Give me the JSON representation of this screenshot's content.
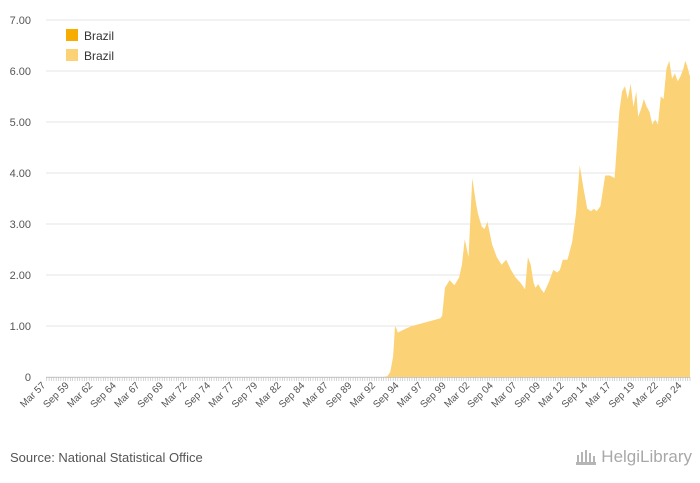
{
  "chart_data": {
    "type": "area",
    "title": "",
    "xlabel": "",
    "ylabel": "",
    "ylim": [
      0,
      7
    ],
    "y_ticks": [
      0,
      1,
      2,
      3,
      4,
      5,
      6,
      7
    ],
    "y_tick_labels": [
      "0",
      "1.00",
      "2.00",
      "3.00",
      "4.00",
      "5.00",
      "6.00",
      "7.00"
    ],
    "x_range": [
      1957.17,
      2025.5
    ],
    "x_tick_labels": [
      "Mar 57",
      "Sep 59",
      "Mar 62",
      "Sep 64",
      "Mar 67",
      "Sep 69",
      "Mar 72",
      "Sep 74",
      "Mar 77",
      "Sep 79",
      "Mar 82",
      "Sep 84",
      "Mar 87",
      "Sep 89",
      "Mar 92",
      "Sep 94",
      "Mar 97",
      "Sep 99",
      "Mar 02",
      "Sep 04",
      "Mar 07",
      "Sep 09",
      "Mar 12",
      "Sep 14",
      "Mar 17",
      "Sep 19",
      "Mar 22",
      "Sep 24"
    ],
    "x_tick_values": [
      1957.17,
      1959.67,
      1962.17,
      1964.67,
      1967.17,
      1969.67,
      1972.17,
      1974.67,
      1977.17,
      1979.67,
      1982.17,
      1984.67,
      1987.17,
      1989.67,
      1992.17,
      1994.67,
      1997.17,
      1999.67,
      2002.17,
      2004.67,
      2007.17,
      2009.67,
      2012.17,
      2014.67,
      2017.17,
      2019.67,
      2022.17,
      2024.67
    ],
    "legend": [
      "Brazil",
      "Brazil"
    ],
    "legend_position": "top-left",
    "grid": true,
    "colors": {
      "series": "#fbd275",
      "legend_primary": "#f7ad00",
      "legend_secondary": "#fbd275"
    },
    "series": [
      {
        "name": "Brazil",
        "x": [
          1957.17,
          1993.0,
          1993.4,
          1993.7,
          1994.0,
          1994.2,
          1994.35,
          1994.5,
          1994.8,
          1995.5,
          1996.0,
          1997.0,
          1998.0,
          1999.0,
          1999.2,
          1999.5,
          2000.0,
          2000.5,
          2001.0,
          2001.3,
          2001.6,
          2002.0,
          2002.4,
          2002.8,
          2003.0,
          2003.4,
          2003.7,
          2004.0,
          2004.5,
          2005.0,
          2005.5,
          2006.0,
          2006.5,
          2007.0,
          2007.5,
          2008.0,
          2008.3,
          2008.6,
          2008.9,
          2009.1,
          2009.4,
          2009.7,
          2010.0,
          2010.5,
          2011.0,
          2011.4,
          2011.7,
          2012.0,
          2012.5,
          2013.0,
          2013.4,
          2013.8,
          2014.2,
          2014.6,
          2015.0,
          2015.3,
          2015.6,
          2016.0,
          2016.5,
          2017.0,
          2017.5,
          2018.0,
          2018.3,
          2018.6,
          2018.9,
          2019.2,
          2019.5,
          2019.8,
          2020.0,
          2020.3,
          2020.6,
          2020.9,
          2021.2,
          2021.5,
          2021.8,
          2022.1,
          2022.4,
          2022.7,
          2023.0,
          2023.3,
          2023.6,
          2023.9,
          2024.2,
          2024.5,
          2024.8,
          2025.0,
          2025.2,
          2025.4,
          2025.5
        ],
        "values": [
          0,
          0,
          0.02,
          0.1,
          0.4,
          1.0,
          0.95,
          0.87,
          0.9,
          0.96,
          1.0,
          1.05,
          1.1,
          1.15,
          1.2,
          1.75,
          1.9,
          1.8,
          1.95,
          2.2,
          2.7,
          2.35,
          3.9,
          3.4,
          3.2,
          2.95,
          2.9,
          3.05,
          2.6,
          2.35,
          2.2,
          2.3,
          2.1,
          1.95,
          1.85,
          1.72,
          2.35,
          2.2,
          1.85,
          1.75,
          1.82,
          1.72,
          1.65,
          1.85,
          2.1,
          2.05,
          2.1,
          2.3,
          2.3,
          2.65,
          3.2,
          4.15,
          3.7,
          3.3,
          3.25,
          3.3,
          3.25,
          3.35,
          3.95,
          3.95,
          3.9,
          5.2,
          5.6,
          5.7,
          5.45,
          5.75,
          5.3,
          5.6,
          5.1,
          5.25,
          5.45,
          5.3,
          5.2,
          4.95,
          5.05,
          4.95,
          5.5,
          5.45,
          6.05,
          6.2,
          5.85,
          5.95,
          5.8,
          5.9,
          6.05,
          6.2,
          6.1,
          5.95,
          5.9
        ]
      }
    ]
  },
  "source_text": "Source: National Statistical Office",
  "logo_text": "HelgiLibrary"
}
